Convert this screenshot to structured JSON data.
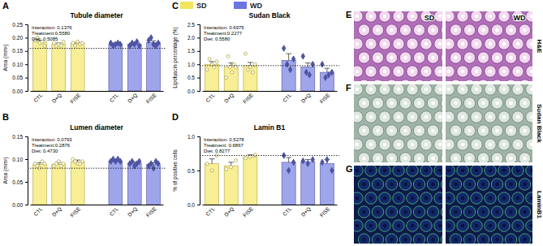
{
  "chart_data": [
    {
      "type": "bar",
      "panel": "A",
      "title": "Tubule diameter",
      "y_label": "Area (mm²)",
      "categories": [
        "CTL",
        "D+Q",
        "FISE",
        "CTL",
        "D+Q",
        "FISE"
      ],
      "ylim": [
        0,
        0.25
      ],
      "yticks": [
        {
          "value": 0,
          "label": "0.00"
        },
        {
          "value": 0.05,
          "label": "0.05"
        },
        {
          "value": 0.1,
          "label": "0.10"
        },
        {
          "value": 0.15,
          "label": "0.15"
        },
        {
          "value": 0.2,
          "label": "0.20"
        },
        {
          "value": 0.25,
          "label": "0.25"
        }
      ],
      "grid": false,
      "reference": 0.16,
      "annotations": [
        "Interaction: 0.1376",
        "Treatment:0.5580",
        "Diet: 0.5085"
      ],
      "series": [
        {
          "color": "#f2e55c",
          "marker": "circle",
          "values": [
            0.185,
            0.176,
            0.178,
            null,
            null,
            null
          ],
          "error": [
            0.005,
            0.004,
            0.004,
            null,
            null,
            null
          ],
          "points": [
            [
              0.19,
              0.2,
              0.18,
              0.185,
              0.17
            ],
            [
              0.18,
              0.17,
              0.175,
              0.17,
              0.185
            ],
            [
              0.18,
              0.17,
              0.185,
              0.175,
              0.18
            ],
            null,
            null,
            null
          ]
        },
        {
          "color": "#6b74e0",
          "marker": "diamond",
          "values": [
            null,
            null,
            null,
            0.176,
            0.176,
            0.182
          ],
          "error": [
            null,
            null,
            null,
            0.004,
            0.004,
            0.006
          ],
          "points": [
            null,
            null,
            null,
            [
              0.18,
              0.17,
              0.175,
              0.18,
              0.175
            ],
            [
              0.17,
              0.18,
              0.175,
              0.185,
              0.17
            ],
            [
              0.19,
              0.2,
              0.175,
              0.17,
              0.18
            ]
          ]
        }
      ]
    },
    {
      "type": "bar",
      "panel": "B",
      "title": "Lumen diameter",
      "y_label": "Area (mm²)",
      "categories": [
        "CTL",
        "D+Q",
        "FISE",
        "CTL",
        "D+Q",
        "FISE"
      ],
      "ylim": [
        0,
        0.15
      ],
      "yticks": [
        {
          "value": 0,
          "label": "0.00"
        },
        {
          "value": 0.05,
          "label": "0.05"
        },
        {
          "value": 0.1,
          "label": "0.10"
        },
        {
          "value": 0.15,
          "label": "0.15"
        }
      ],
      "grid": false,
      "reference": 0.08,
      "annotations": [
        "Interaction: 0.0793",
        "Treatment:0.2876",
        "Diet: 0.4730"
      ],
      "series": [
        {
          "color": "#f2e55c",
          "marker": "circle",
          "values": [
            0.088,
            0.089,
            0.094,
            null,
            null,
            null
          ],
          "error": [
            0.004,
            0.004,
            0.004,
            null,
            null,
            null
          ],
          "points": [
            [
              0.09,
              0.085,
              0.08,
              0.095,
              0.09
            ],
            [
              0.085,
              0.09,
              0.095,
              0.085,
              0.09
            ],
            [
              0.1,
              0.095,
              0.09,
              0.09,
              0.095
            ],
            null,
            null,
            null
          ]
        },
        {
          "color": "#6b74e0",
          "marker": "diamond",
          "values": [
            null,
            null,
            null,
            0.096,
            0.091,
            0.088
          ],
          "error": [
            null,
            null,
            null,
            0.002,
            0.003,
            0.004
          ],
          "points": [
            null,
            null,
            null,
            [
              0.095,
              0.1,
              0.095,
              0.1,
              0.095
            ],
            [
              0.09,
              0.095,
              0.085,
              0.09,
              0.095
            ],
            [
              0.085,
              0.09,
              0.08,
              0.095,
              0.09
            ]
          ]
        }
      ]
    },
    {
      "type": "bar",
      "panel": "C",
      "title": "Sudan Black",
      "y_label": "Lipofuscin percentage (%)",
      "categories": [
        "CTL",
        "D+Q",
        "FISE",
        "CTL",
        "D+Q",
        "FISE"
      ],
      "ylim": [
        0,
        2.5
      ],
      "yticks": [
        {
          "value": 0,
          "label": "0.0"
        },
        {
          "value": 0.5,
          "label": "0.5"
        },
        {
          "value": 1,
          "label": "1.0"
        },
        {
          "value": 1.5,
          "label": "1.5"
        },
        {
          "value": 2,
          "label": "2.0"
        },
        {
          "value": 2.5,
          "label": "2.5"
        }
      ],
      "grid": false,
      "reference": 0.95,
      "annotations": [
        "Interaction: 0.6975",
        "Treatment:0.2277",
        "Diet: 0.5580"
      ],
      "series": [
        {
          "color": "#f2e55c",
          "marker": "circle",
          "values": [
            1.0,
            0.9,
            0.95,
            null,
            null,
            null
          ],
          "error": [
            0.1,
            0.15,
            0.12,
            null,
            null,
            null
          ],
          "points": [
            [
              0.8,
              1.2,
              1.0,
              0.9,
              1.1
            ],
            [
              0.5,
              1.3,
              0.9,
              0.7,
              1.0,
              0.9
            ],
            [
              1.4,
              0.8,
              0.9,
              0.7,
              1.0
            ],
            null,
            null,
            null
          ]
        },
        {
          "color": "#6b74e0",
          "marker": "diamond",
          "values": [
            null,
            null,
            null,
            1.15,
            0.9,
            0.7
          ],
          "error": [
            null,
            null,
            null,
            0.25,
            0.15,
            0.15
          ],
          "points": [
            null,
            null,
            null,
            [
              1.6,
              1.0,
              0.8,
              1.2
            ],
            [
              1.3,
              0.7,
              0.6,
              1.0
            ],
            [
              1.0,
              0.5,
              0.6,
              0.7
            ]
          ]
        }
      ]
    },
    {
      "type": "bar",
      "panel": "D",
      "title": "Lamin B1",
      "y_label": "% of positive cells",
      "categories": [
        "CTL",
        "D+Q",
        "FISE",
        "CTL",
        "D+Q",
        "FISE"
      ],
      "ylim": [
        0,
        1.0
      ],
      "yticks": [
        {
          "value": 0,
          "label": "0.0"
        },
        {
          "value": 0.5,
          "label": "0.5"
        },
        {
          "value": 1,
          "label": "1.0"
        }
      ],
      "grid": false,
      "reference": 0.72,
      "annotations": [
        "Interaction: 0.5278",
        "Treatment: 0.6867",
        "Diet: 0.8277"
      ],
      "series": [
        {
          "color": "#f2e55c",
          "marker": "circle",
          "values": [
            0.6,
            0.57,
            0.7,
            null,
            null,
            null
          ],
          "error": [
            0.07,
            0.05,
            0.03,
            null,
            null,
            null
          ],
          "points": [
            [
              0.6,
              0.5,
              0.72
            ],
            [
              0.52,
              0.55,
              0.65
            ],
            [
              0.68,
              0.7,
              0.73
            ],
            null,
            null,
            null
          ]
        },
        {
          "color": "#6b74e0",
          "marker": "diamond",
          "values": [
            null,
            null,
            null,
            0.62,
            0.63,
            0.6
          ],
          "error": [
            null,
            null,
            null,
            0.07,
            0.03,
            0.06
          ],
          "points": [
            null,
            null,
            null,
            [
              0.72,
              0.5,
              0.62
            ],
            [
              0.64,
              0.6,
              0.66
            ],
            [
              0.62,
              0.66,
              0.5
            ]
          ]
        }
      ]
    }
  ],
  "legend_entries": [
    {
      "name": "SD",
      "color": "#f2e55c"
    },
    {
      "name": "WD",
      "color": "#6b74e0"
    }
  ],
  "image_columns": [
    "SD",
    "WD"
  ],
  "image_panels": [
    {
      "panel": "E",
      "label": "H&E"
    },
    {
      "panel": "F",
      "label": "Sudan Black"
    },
    {
      "panel": "G",
      "label": "LaminB1"
    }
  ]
}
